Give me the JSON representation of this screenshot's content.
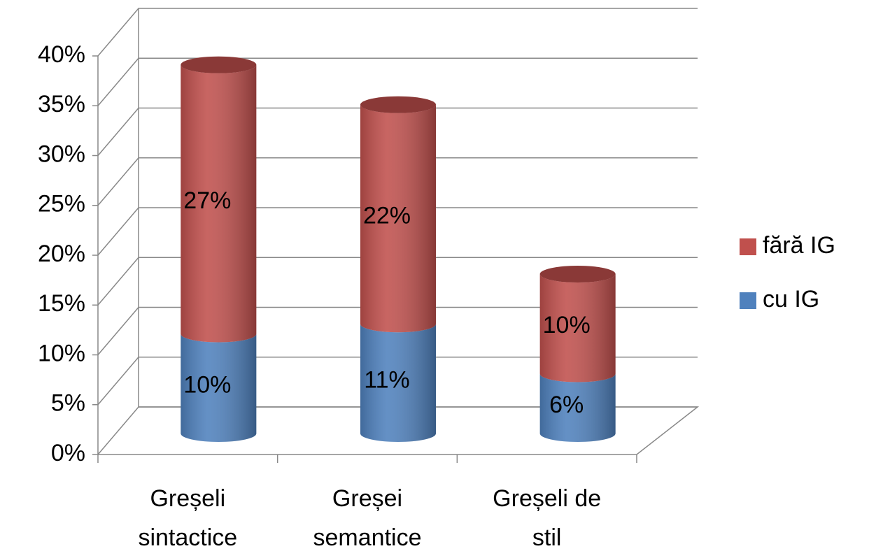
{
  "chart_data": {
    "type": "bar",
    "stacked": true,
    "categories": [
      "Greșeli sintactice",
      "Greșei semantice",
      "Greșeli de stil"
    ],
    "series": [
      {
        "name": "cu IG",
        "color": "#4f81bd",
        "values": [
          10,
          11,
          6
        ],
        "value_labels": [
          "10%",
          "11%",
          "6%"
        ]
      },
      {
        "name": "fără IG",
        "color": "#c0504d",
        "values": [
          27,
          22,
          10
        ],
        "value_labels": [
          "27%",
          "22%",
          "10%"
        ]
      }
    ],
    "ylim": [
      0,
      40
    ],
    "yticks": [
      {
        "value": 0,
        "label": "0%"
      },
      {
        "value": 5,
        "label": "5%"
      },
      {
        "value": 10,
        "label": "10%"
      },
      {
        "value": 15,
        "label": "15%"
      },
      {
        "value": 20,
        "label": "20%"
      },
      {
        "value": 25,
        "label": "25%"
      },
      {
        "value": 30,
        "label": "30%"
      },
      {
        "value": 35,
        "label": "35%"
      },
      {
        "value": 40,
        "label": "40%"
      }
    ],
    "grid": true,
    "legend": "right"
  }
}
